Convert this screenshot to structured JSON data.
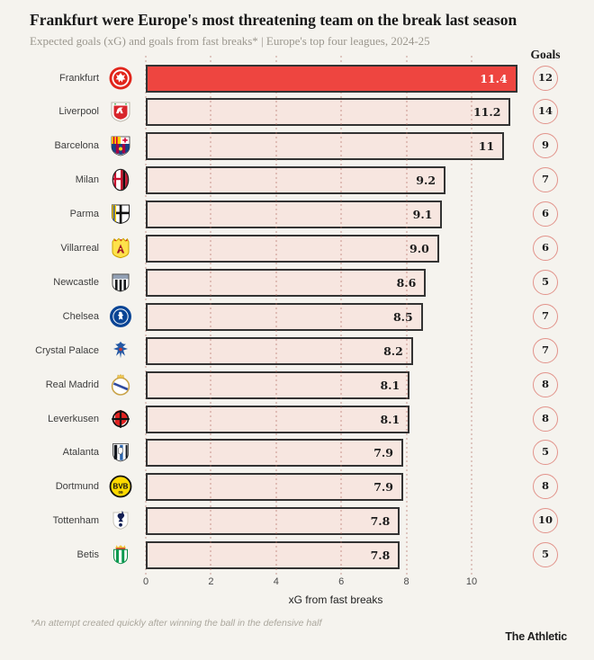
{
  "chart_data": {
    "type": "bar",
    "orientation": "horizontal",
    "title": "Frankfurt were Europe's most threatening team on the break last season",
    "subtitle": "Expected goals (xG) and goals from fast breaks* | Europe's top four leagues, 2024-25",
    "goals_header": "Goals",
    "xlabel": "xG from fast breaks",
    "x_ticks": [
      0,
      2,
      4,
      6,
      8,
      10
    ],
    "xlim": [
      0,
      11.7
    ],
    "grid": "dotted-vertical",
    "legend": "none",
    "highlight_category": "Frankfurt",
    "categories": [
      "Frankfurt",
      "Liverpool",
      "Barcelona",
      "Milan",
      "Parma",
      "Villarreal",
      "Newcastle",
      "Chelsea",
      "Crystal Palace",
      "Real Madrid",
      "Leverkusen",
      "Atalanta",
      "Dortmund",
      "Tottenham",
      "Betis"
    ],
    "series": [
      {
        "name": "xG from fast breaks",
        "values": [
          11.4,
          11.2,
          11,
          9.2,
          9.1,
          9.0,
          8.6,
          8.5,
          8.2,
          8.1,
          8.1,
          7.9,
          7.9,
          7.8,
          7.8
        ],
        "labels": [
          "11.4",
          "11.2",
          "11",
          "9.2",
          "9.1",
          "9.0",
          "8.6",
          "8.5",
          "8.2",
          "8.1",
          "8.1",
          "7.9",
          "7.9",
          "7.8",
          "7.8"
        ]
      },
      {
        "name": "Goals",
        "values": [
          12,
          14,
          9,
          7,
          6,
          6,
          5,
          7,
          7,
          8,
          8,
          5,
          8,
          10,
          5
        ]
      }
    ],
    "crest_icons": [
      "frankfurt-crest-icon",
      "liverpool-crest-icon",
      "barcelona-crest-icon",
      "milan-crest-icon",
      "parma-crest-icon",
      "villarreal-crest-icon",
      "newcastle-crest-icon",
      "chelsea-crest-icon",
      "crystal-palace-crest-icon",
      "real-madrid-crest-icon",
      "leverkusen-crest-icon",
      "atalanta-crest-icon",
      "dortmund-crest-icon",
      "tottenham-crest-icon",
      "betis-crest-icon"
    ]
  },
  "colors": {
    "background": "#f5f3ee",
    "bar_fill": "#f7e6e0",
    "bar_border": "#333333",
    "highlight": "#ee4540",
    "goals_circle_border": "#e2938b",
    "value_text": "#1d1d1d",
    "highlight_value_text": "#ffffff"
  },
  "footnote": "*An attempt created quickly after winning the ball in the defensive half",
  "source": "The Athletic"
}
